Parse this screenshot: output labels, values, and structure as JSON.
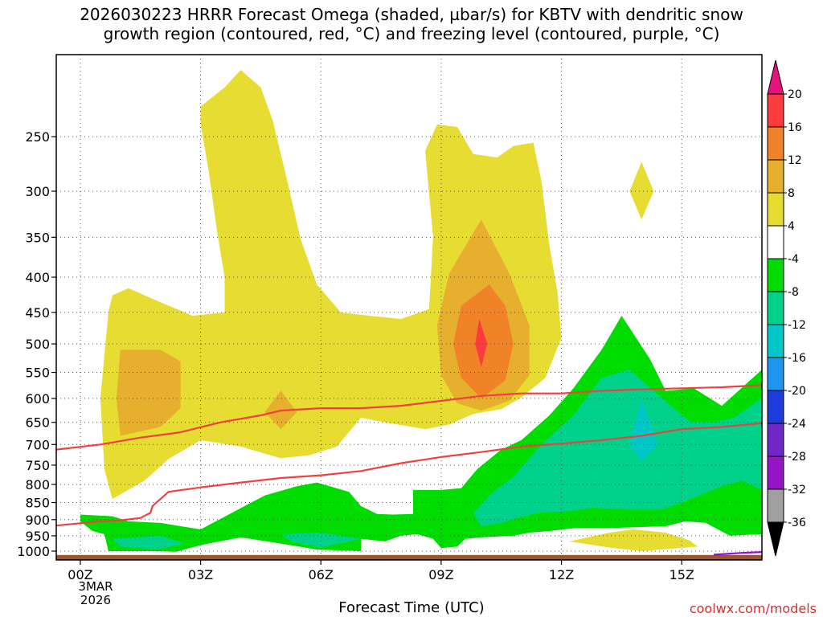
{
  "title_line1": "2026030223 HRRR Forecast Omega (shaded, µbar/s) for KBTV with dendritic snow",
  "title_line2": "growth region (contoured, red, °C) and freezing level (contoured, purple, °C)",
  "xlabel": "Forecast Time (UTC)",
  "credit": "coolwx.com/models",
  "date_label": [
    "3MAR",
    "2026"
  ],
  "colors": {
    "yellow": "#e6dc32",
    "orange_light": "#e6af2d",
    "orange": "#f08228",
    "red": "#fa3c3c",
    "green": "#00dc00",
    "teal": "#00d28c",
    "cyan": "#00c8c8",
    "ground": "#a0522d",
    "contour_red": "#f04040",
    "contour_purple": "#9010d0"
  },
  "chart_data": {
    "type": "heatmap",
    "x_unit": "forecast hour",
    "x_ticks": [
      {
        "hour": 0,
        "label": "00Z"
      },
      {
        "hour": 3,
        "label": "03Z"
      },
      {
        "hour": 6,
        "label": "06Z"
      },
      {
        "hour": 9,
        "label": "09Z"
      },
      {
        "hour": 12,
        "label": "12Z"
      },
      {
        "hour": 15,
        "label": "15Z"
      }
    ],
    "xlim": [
      -0.6,
      17
    ],
    "y_unit": "hPa",
    "y_scale": "log",
    "ylim": [
      1030,
      190
    ],
    "y_ticks": [
      250,
      300,
      350,
      400,
      450,
      500,
      550,
      600,
      650,
      700,
      750,
      800,
      850,
      900,
      950,
      1000
    ],
    "grid": true,
    "colorbar": {
      "levels": [
        20,
        16,
        12,
        8,
        4,
        -4,
        -8,
        -12,
        -16,
        -20,
        -24,
        -28,
        -32,
        -36
      ],
      "colors": [
        "#fa3c3c",
        "#f08228",
        "#e6af2d",
        "#e6dc32",
        "#ffffff",
        "#00dc00",
        "#00d28c",
        "#00c8c8",
        "#1e96f0",
        "#1e3cdc",
        "#6e28c8",
        "#9614c8",
        "#a0a0a0"
      ],
      "top_arrow_color": "#e6147a",
      "bottom_arrow_color": "#000000"
    },
    "regions": [
      {
        "level": "yellow",
        "points": [
          [
            3.0,
            226
          ],
          [
            3.6,
            212
          ],
          [
            4.0,
            200
          ],
          [
            4.5,
            212
          ],
          [
            4.8,
            237
          ],
          [
            5.1,
            280
          ],
          [
            5.5,
            353
          ],
          [
            5.9,
            410
          ],
          [
            6.5,
            450
          ],
          [
            7.2,
            455
          ],
          [
            8.0,
            460
          ],
          [
            8.7,
            445
          ],
          [
            8.8,
            350
          ],
          [
            8.6,
            262
          ],
          [
            8.9,
            240
          ],
          [
            9.4,
            242
          ],
          [
            9.8,
            265
          ],
          [
            10.4,
            268
          ],
          [
            10.8,
            258
          ],
          [
            11.3,
            255
          ],
          [
            11.5,
            290
          ],
          [
            11.7,
            360
          ],
          [
            11.9,
            420
          ],
          [
            12.0,
            490
          ],
          [
            11.6,
            560
          ],
          [
            11.0,
            598
          ],
          [
            10.5,
            622
          ],
          [
            9.8,
            632
          ],
          [
            9.2,
            655
          ],
          [
            8.6,
            665
          ],
          [
            7.6,
            650
          ],
          [
            7.0,
            640
          ],
          [
            6.4,
            705
          ],
          [
            5.7,
            726
          ],
          [
            5.0,
            733
          ],
          [
            4.0,
            705
          ],
          [
            3.0,
            690
          ],
          [
            2.2,
            735
          ],
          [
            1.6,
            790
          ],
          [
            0.8,
            840
          ],
          [
            0.6,
            760
          ],
          [
            0.5,
            600
          ],
          [
            0.7,
            450
          ],
          [
            0.8,
            425
          ],
          [
            1.2,
            415
          ],
          [
            2.0,
            435
          ],
          [
            2.8,
            455
          ],
          [
            3.6,
            450
          ],
          [
            3.6,
            400
          ],
          [
            3.4,
            340
          ],
          [
            3.2,
            280
          ],
          [
            3.0,
            240
          ]
        ]
      },
      {
        "level": "yellow",
        "points": [
          [
            14.0,
            272
          ],
          [
            14.3,
            300
          ],
          [
            14.0,
            330
          ],
          [
            13.7,
            300
          ]
        ]
      },
      {
        "level": "yellow",
        "points": [
          [
            12.2,
            968
          ],
          [
            13.2,
            940
          ],
          [
            13.8,
            930
          ],
          [
            14.6,
            940
          ],
          [
            15.2,
            965
          ],
          [
            15.4,
            985
          ],
          [
            14.0,
            1000
          ],
          [
            13.3,
            990
          ]
        ]
      },
      {
        "level": "orange_light",
        "points": [
          [
            9.2,
            395
          ],
          [
            10.0,
            330
          ],
          [
            10.7,
            395
          ],
          [
            11.2,
            470
          ],
          [
            11.2,
            555
          ],
          [
            10.7,
            605
          ],
          [
            10.0,
            625
          ],
          [
            9.4,
            610
          ],
          [
            9.0,
            555
          ],
          [
            8.9,
            470
          ]
        ]
      },
      {
        "level": "orange_light",
        "points": [
          [
            1.0,
            510
          ],
          [
            2.0,
            510
          ],
          [
            2.5,
            530
          ],
          [
            2.5,
            620
          ],
          [
            2.0,
            660
          ],
          [
            1.0,
            680
          ],
          [
            0.9,
            600
          ]
        ]
      },
      {
        "level": "orange_light",
        "points": [
          [
            5.0,
            585
          ],
          [
            5.4,
            628
          ],
          [
            5.0,
            665
          ],
          [
            4.6,
            628
          ]
        ]
      },
      {
        "level": "orange",
        "points": [
          [
            10.2,
            410
          ],
          [
            10.6,
            440
          ],
          [
            10.8,
            500
          ],
          [
            10.6,
            565
          ],
          [
            10.0,
            600
          ],
          [
            9.5,
            560
          ],
          [
            9.3,
            500
          ],
          [
            9.5,
            440
          ]
        ]
      },
      {
        "level": "red",
        "points": [
          [
            9.95,
            460
          ],
          [
            10.15,
            500
          ],
          [
            10.0,
            540
          ],
          [
            9.85,
            500
          ]
        ]
      },
      {
        "level": "green",
        "points": [
          [
            0.0,
            885
          ],
          [
            0.8,
            890
          ],
          [
            1.2,
            905
          ],
          [
            2.0,
            910
          ],
          [
            3.0,
            930
          ],
          [
            4.1,
            860
          ],
          [
            4.6,
            830
          ],
          [
            5.4,
            805
          ],
          [
            5.9,
            795
          ],
          [
            6.7,
            820
          ],
          [
            7.0,
            860
          ],
          [
            7.4,
            883
          ],
          [
            7.8,
            885
          ],
          [
            8.3,
            883
          ],
          [
            8.3,
            815
          ],
          [
            9.0,
            815
          ],
          [
            9.5,
            810
          ],
          [
            9.9,
            760
          ],
          [
            10.5,
            712
          ],
          [
            11.0,
            690
          ],
          [
            11.7,
            635
          ],
          [
            12.3,
            580
          ],
          [
            13.0,
            510
          ],
          [
            13.5,
            455
          ],
          [
            14.2,
            525
          ],
          [
            14.6,
            585
          ],
          [
            15.3,
            580
          ],
          [
            16.0,
            615
          ],
          [
            17.0,
            545
          ],
          [
            17.0,
            945
          ],
          [
            16.2,
            950
          ],
          [
            15.6,
            910
          ],
          [
            15.1,
            905
          ],
          [
            14.6,
            920
          ],
          [
            13.4,
            925
          ],
          [
            12.4,
            925
          ],
          [
            11.7,
            935
          ],
          [
            11.2,
            940
          ],
          [
            10.8,
            950
          ],
          [
            10.0,
            955
          ],
          [
            9.6,
            960
          ],
          [
            9.4,
            985
          ],
          [
            9.0,
            990
          ],
          [
            8.8,
            960
          ],
          [
            8.4,
            945
          ],
          [
            8.0,
            950
          ],
          [
            7.6,
            968
          ],
          [
            7.0,
            960
          ],
          [
            7.0,
            1000
          ],
          [
            5.9,
            995
          ],
          [
            5.0,
            975
          ],
          [
            4.0,
            955
          ],
          [
            3.0,
            980
          ],
          [
            2.4,
            1002
          ],
          [
            1.8,
            1000
          ],
          [
            0.7,
            1000
          ],
          [
            0.6,
            945
          ],
          [
            0.3,
            935
          ],
          [
            0.0,
            905
          ]
        ]
      },
      {
        "level": "teal",
        "points": [
          [
            10.0,
            920
          ],
          [
            9.8,
            880
          ],
          [
            10.3,
            820
          ],
          [
            10.8,
            780
          ],
          [
            11.5,
            700
          ],
          [
            12.3,
            635
          ],
          [
            13.0,
            560
          ],
          [
            13.7,
            545
          ],
          [
            14.3,
            585
          ],
          [
            14.8,
            620
          ],
          [
            15.2,
            648
          ],
          [
            15.8,
            650
          ],
          [
            16.3,
            640
          ],
          [
            17.0,
            600
          ],
          [
            17.0,
            815
          ],
          [
            16.5,
            790
          ],
          [
            16.0,
            805
          ],
          [
            15.0,
            850
          ],
          [
            14.5,
            870
          ],
          [
            13.6,
            870
          ],
          [
            12.8,
            865
          ],
          [
            12.2,
            875
          ],
          [
            11.4,
            880
          ],
          [
            10.9,
            895
          ],
          [
            10.5,
            910
          ]
        ]
      },
      {
        "level": "teal",
        "points": [
          [
            0.8,
            960
          ],
          [
            2.0,
            950
          ],
          [
            2.6,
            975
          ],
          [
            1.9,
            995
          ],
          [
            1.0,
            985
          ]
        ]
      },
      {
        "level": "teal",
        "points": [
          [
            5.0,
            945
          ],
          [
            6.0,
            940
          ],
          [
            7.0,
            960
          ],
          [
            6.0,
            988
          ],
          [
            5.3,
            970
          ]
        ]
      },
      {
        "level": "cyan",
        "points": [
          [
            14.0,
            600
          ],
          [
            14.4,
            700
          ],
          [
            14.0,
            740
          ],
          [
            13.7,
            700
          ]
        ]
      }
    ],
    "red_contours": [
      {
        "points": [
          [
            -0.6,
            712
          ],
          [
            0.5,
            700
          ],
          [
            1.5,
            684
          ],
          [
            2.5,
            672
          ],
          [
            3.5,
            650
          ],
          [
            4.5,
            635
          ],
          [
            5.0,
            625
          ],
          [
            6.0,
            620
          ],
          [
            7.0,
            620
          ],
          [
            8.0,
            615
          ],
          [
            9.0,
            605
          ],
          [
            10.0,
            595
          ],
          [
            11.0,
            590
          ],
          [
            12.0,
            590
          ],
          [
            13.0,
            585
          ],
          [
            14.0,
            582
          ],
          [
            15.0,
            580
          ],
          [
            16.0,
            578
          ],
          [
            17.0,
            574
          ]
        ]
      },
      {
        "points": [
          [
            -0.6,
            918
          ],
          [
            0.5,
            905
          ],
          [
            1.0,
            902
          ],
          [
            1.5,
            895
          ],
          [
            1.75,
            880
          ],
          [
            1.8,
            860
          ],
          [
            2.2,
            820
          ],
          [
            3.0,
            808
          ],
          [
            4.0,
            795
          ],
          [
            5.0,
            783
          ],
          [
            6.0,
            776
          ],
          [
            7.0,
            765
          ],
          [
            8.0,
            745
          ],
          [
            9.0,
            730
          ],
          [
            10.0,
            718
          ],
          [
            11.0,
            705
          ],
          [
            12.0,
            698
          ],
          [
            13.0,
            690
          ],
          [
            14.0,
            680
          ],
          [
            15.0,
            665
          ],
          [
            16.0,
            660
          ],
          [
            17.0,
            652
          ]
        ]
      }
    ],
    "purple_contours": [
      {
        "points": [
          [
            15.8,
            1012
          ],
          [
            16.5,
            1006
          ],
          [
            17.0,
            1003
          ]
        ]
      }
    ],
    "ground": {
      "top_hPa": 1013,
      "color": "#a0522d"
    }
  }
}
